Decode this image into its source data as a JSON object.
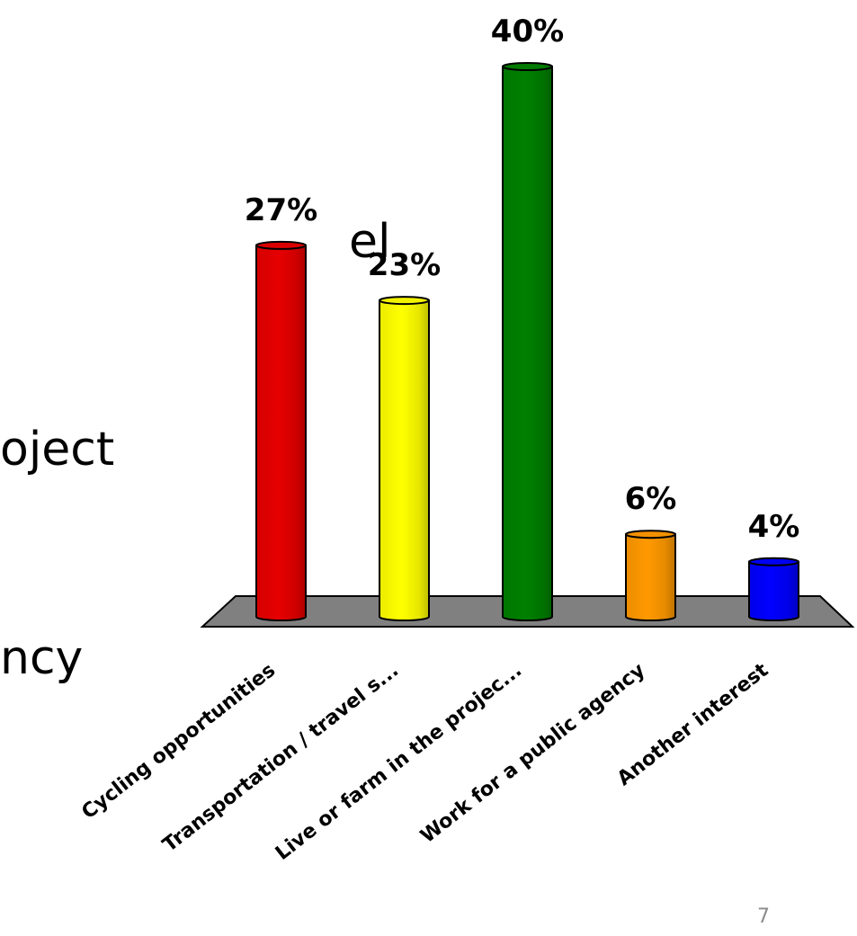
{
  "slide": {
    "text_fragments": [
      "el",
      "oject",
      "ncy"
    ],
    "page_number": "7"
  },
  "colors": {
    "floor": "#808080",
    "series": [
      "#e60000",
      "#ffff00",
      "#008000",
      "#ff9900",
      "#0000ff"
    ]
  },
  "chart_data": {
    "type": "bar",
    "style": "3d-cylinder",
    "categories": [
      "Cycling opportunities",
      "Transportation / travel s...",
      "Live or farm in the projec...",
      "Work for a public agency",
      "Another interest"
    ],
    "values": [
      27,
      23,
      40,
      6,
      4
    ],
    "data_labels": [
      "27%",
      "23%",
      "40%",
      "6%",
      "4%"
    ],
    "value_unit": "%",
    "ylim": [
      0,
      40
    ],
    "grid": false,
    "legend": "none"
  }
}
